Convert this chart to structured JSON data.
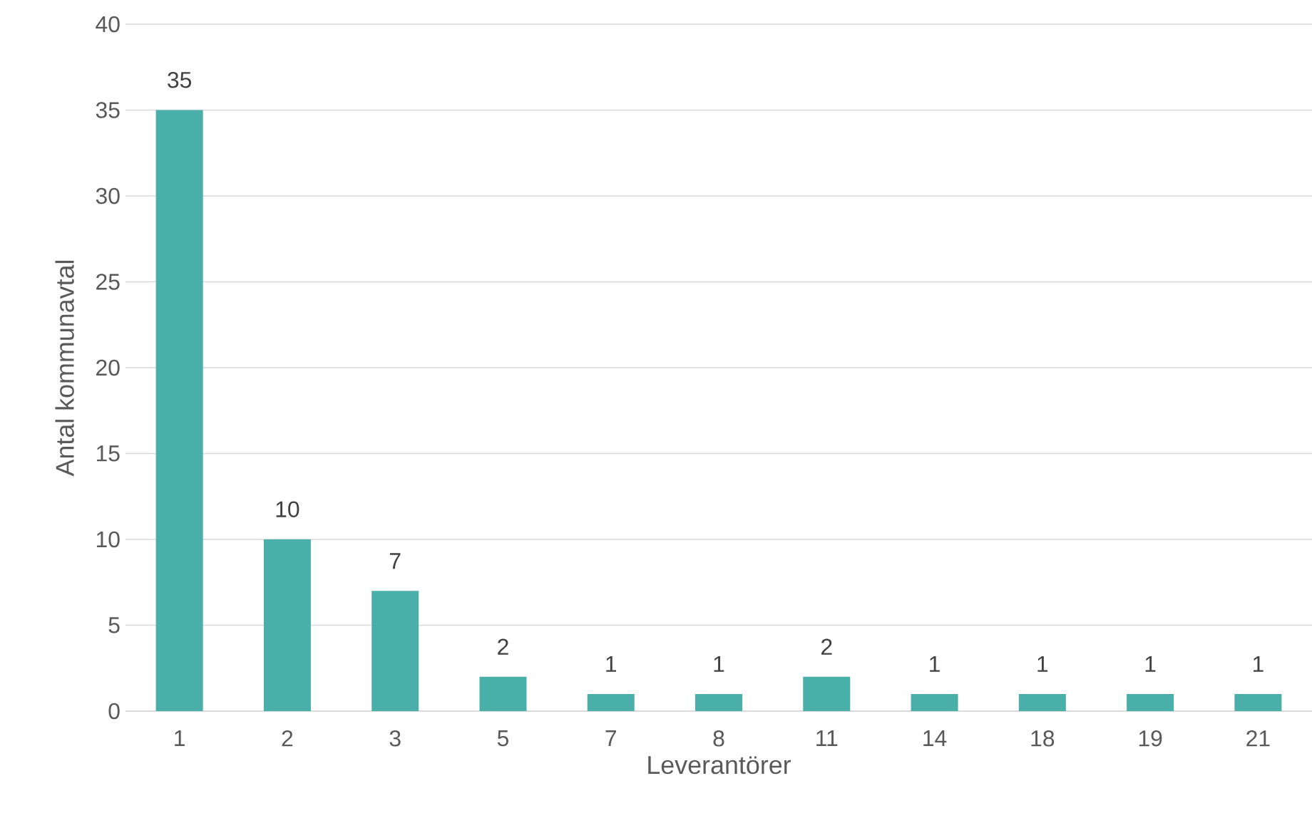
{
  "chart_data": {
    "type": "bar",
    "xlabel": "Leverantörer",
    "ylabel": "Antal kommunavtal",
    "categories": [
      "1",
      "2",
      "3",
      "5",
      "7",
      "8",
      "11",
      "14",
      "18",
      "19",
      "21"
    ],
    "values": [
      35,
      10,
      7,
      2,
      1,
      1,
      2,
      1,
      1,
      1,
      1
    ],
    "color": "#4aafa8",
    "ylim": [
      0,
      40
    ],
    "yticks": [
      0,
      5,
      10,
      15,
      20,
      25,
      30,
      35,
      40
    ],
    "grid": "y",
    "data_labels": true
  }
}
